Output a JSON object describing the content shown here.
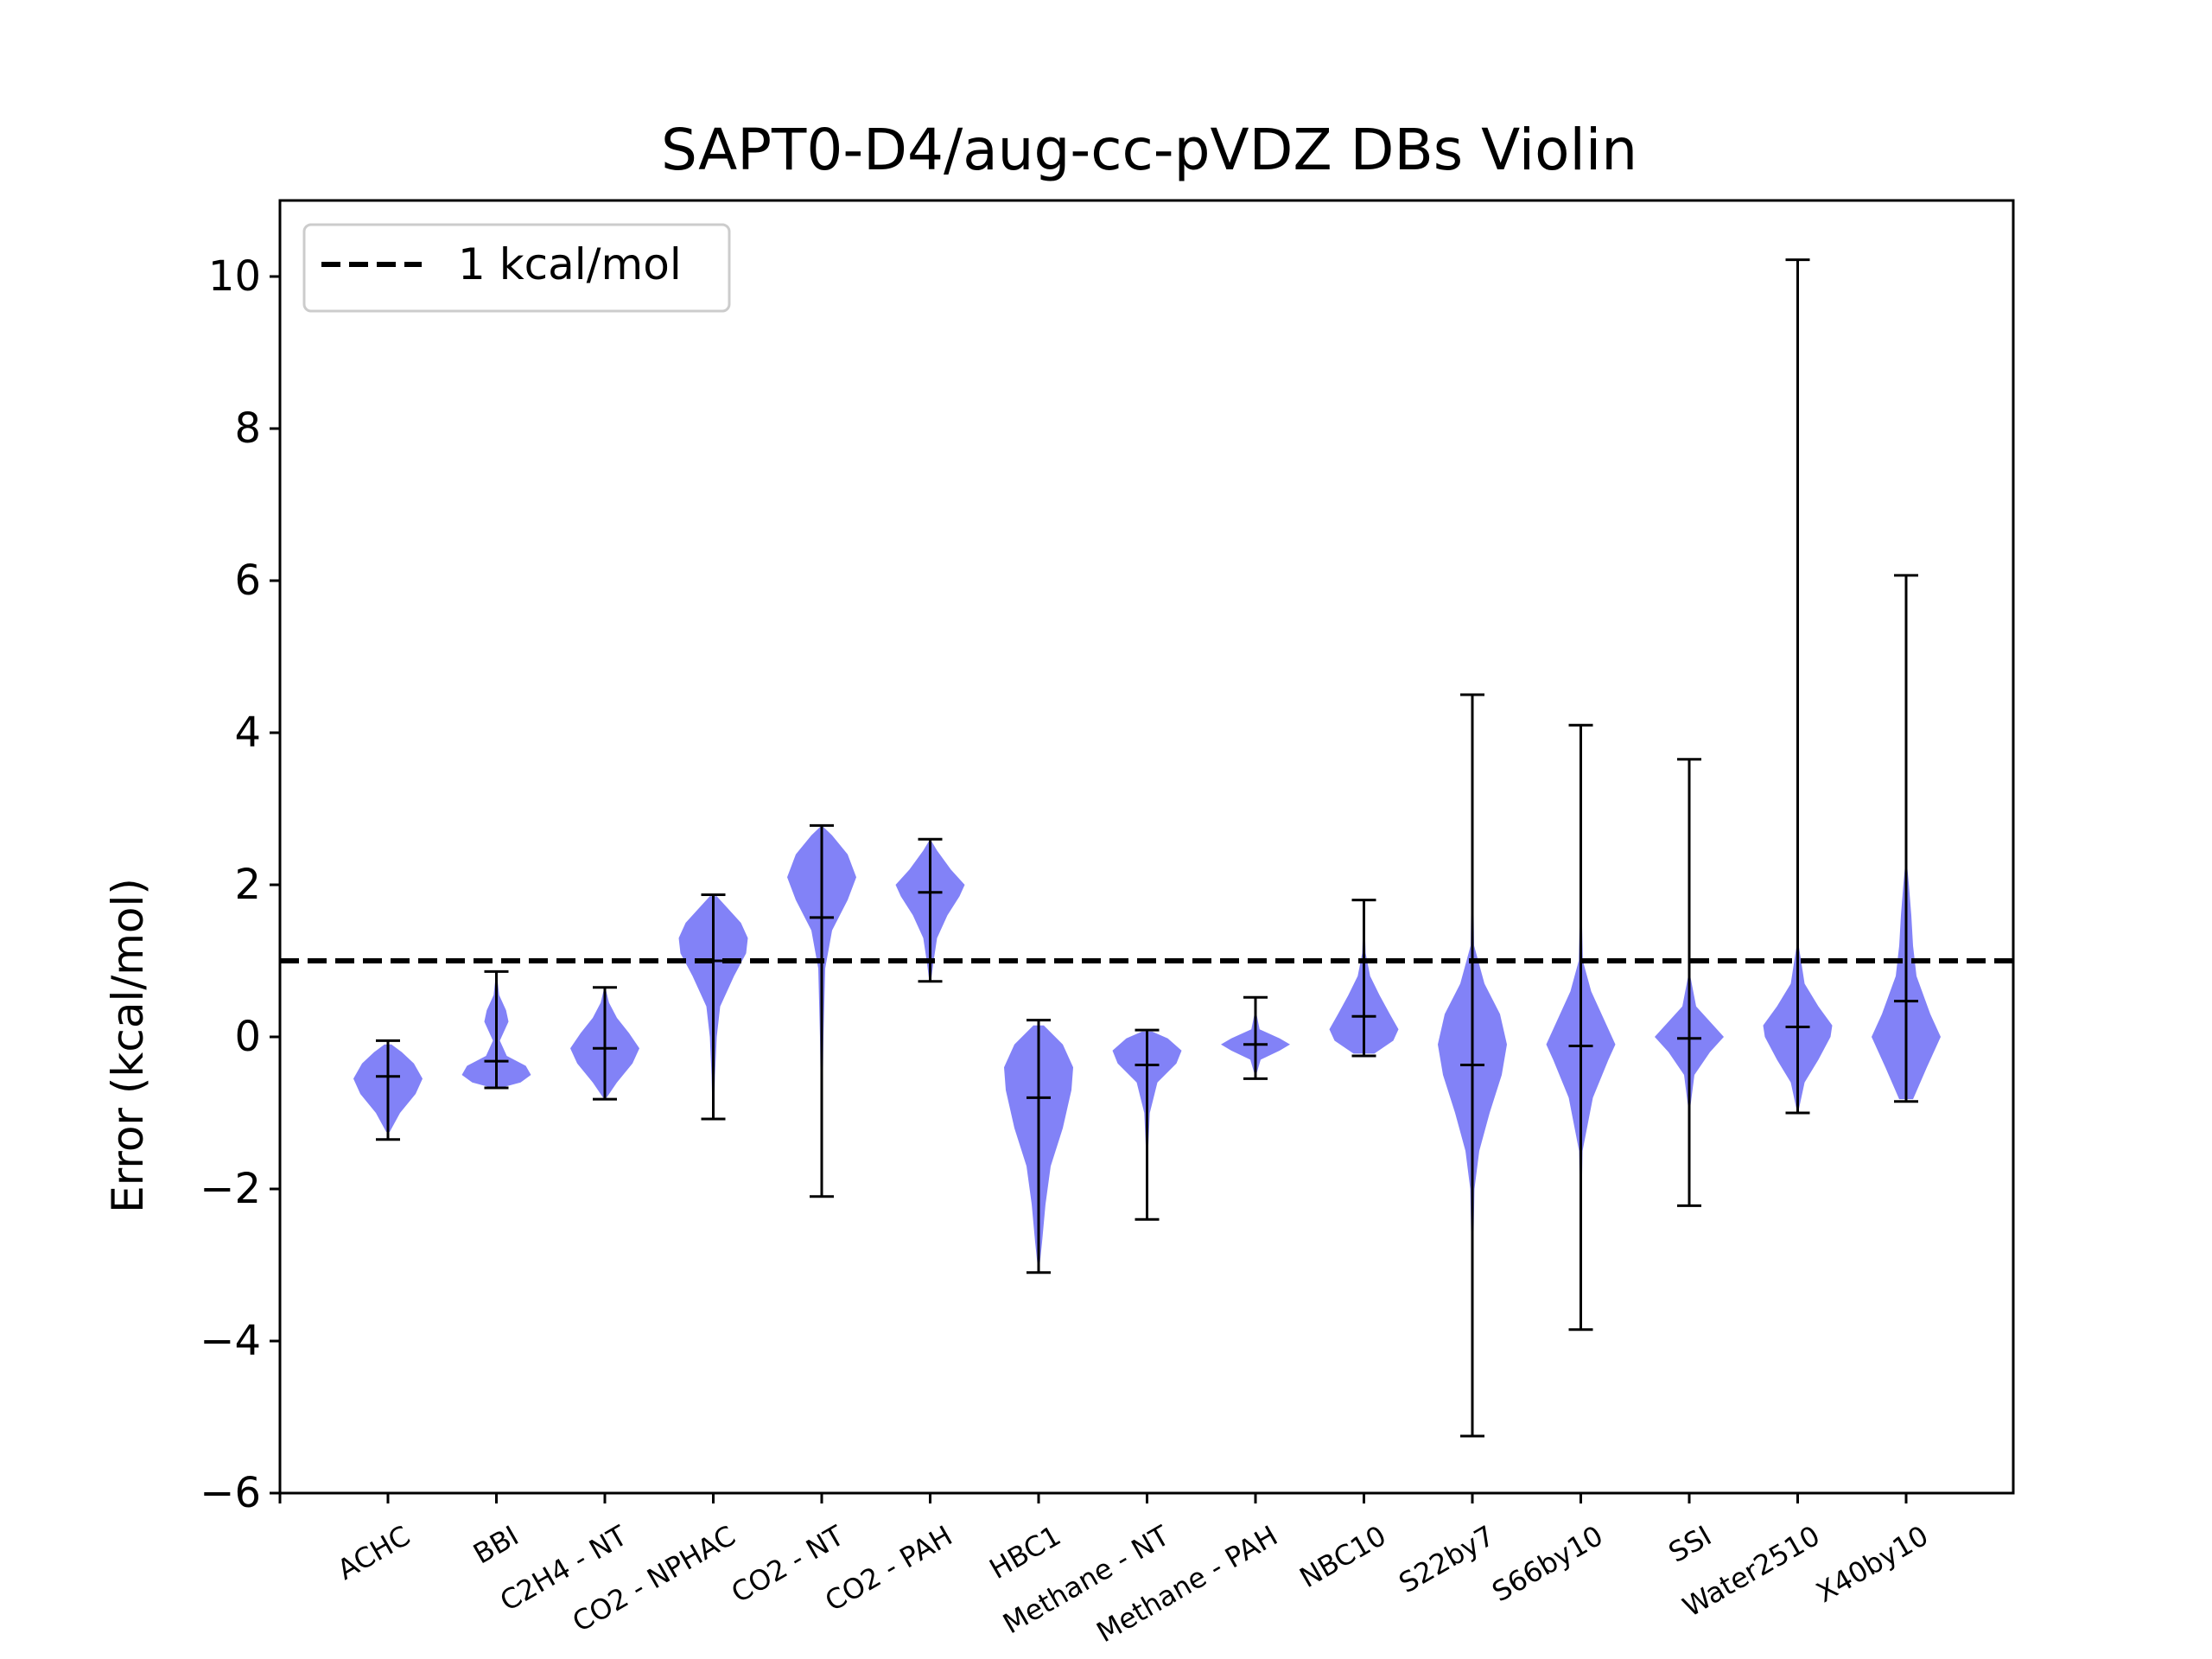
{
  "chart_data": {
    "type": "violin",
    "title": "SAPT0-D4/aug-cc-pVDZ DBs Violin",
    "xlabel": "",
    "ylabel": "Error (kcal/mol)",
    "ylim": [
      -6,
      11
    ],
    "yticks": [
      -6,
      -4,
      -2,
      0,
      2,
      4,
      6,
      8,
      10
    ],
    "ytick_labels": [
      "−6",
      "−4",
      "−2",
      "0",
      "2",
      "4",
      "6",
      "8",
      "10"
    ],
    "grid": false,
    "legend": {
      "location": "top-left",
      "entries": [
        {
          "label": "1 kcal/mol",
          "style": "dashed black line"
        }
      ]
    },
    "reference_line": {
      "y": 1.0,
      "style": "dashed",
      "color": "#000000"
    },
    "violin_color": "#7b7bf7",
    "categories": [
      "ACHC",
      "BBI",
      "C2H4 - NT",
      "CO2 - NPHAC",
      "CO2 - NT",
      "CO2 - PAH",
      "HBC1",
      "Methane - NT",
      "Methane - PAH",
      "NBC10",
      "S22by7",
      "S66by10",
      "SSI",
      "Water2510",
      "X40by10"
    ],
    "series": [
      {
        "min": -1.35,
        "max": -0.05,
        "median": -0.52,
        "density": [
          [
            -1.25,
            0.05
          ],
          [
            -1.0,
            0.35
          ],
          [
            -0.75,
            0.8
          ],
          [
            -0.55,
            1.0
          ],
          [
            -0.35,
            0.75
          ],
          [
            -0.2,
            0.4
          ],
          [
            -0.1,
            0.1
          ]
        ]
      },
      {
        "min": -0.67,
        "max": 0.86,
        "median": -0.32,
        "density": [
          [
            -0.66,
            0.2
          ],
          [
            -0.6,
            0.7
          ],
          [
            -0.5,
            1.0
          ],
          [
            -0.38,
            0.85
          ],
          [
            -0.25,
            0.3
          ],
          [
            -0.05,
            0.1
          ],
          [
            0.2,
            0.35
          ],
          [
            0.35,
            0.28
          ],
          [
            0.55,
            0.08
          ],
          [
            0.8,
            0.02
          ]
        ]
      },
      {
        "min": -0.82,
        "max": 0.65,
        "median": -0.15,
        "density": [
          [
            -0.8,
            0.05
          ],
          [
            -0.6,
            0.35
          ],
          [
            -0.35,
            0.8
          ],
          [
            -0.15,
            1.0
          ],
          [
            0.05,
            0.7
          ],
          [
            0.25,
            0.35
          ],
          [
            0.45,
            0.12
          ],
          [
            0.62,
            0.03
          ]
        ]
      },
      {
        "min": -1.08,
        "max": 1.87,
        "median": 1.0,
        "density": [
          [
            -1.05,
            0.02
          ],
          [
            -0.5,
            0.05
          ],
          [
            0.0,
            0.1
          ],
          [
            0.4,
            0.2
          ],
          [
            0.8,
            0.6
          ],
          [
            1.1,
            0.95
          ],
          [
            1.3,
            1.0
          ],
          [
            1.5,
            0.8
          ],
          [
            1.7,
            0.4
          ],
          [
            1.85,
            0.1
          ]
        ]
      },
      {
        "min": -2.1,
        "max": 2.78,
        "median": 1.57,
        "density": [
          [
            -2.05,
            0.01
          ],
          [
            -1.0,
            0.02
          ],
          [
            0.0,
            0.05
          ],
          [
            0.9,
            0.1
          ],
          [
            1.4,
            0.3
          ],
          [
            1.8,
            0.75
          ],
          [
            2.1,
            1.0
          ],
          [
            2.4,
            0.75
          ],
          [
            2.65,
            0.3
          ],
          [
            2.76,
            0.05
          ]
        ]
      },
      {
        "min": 0.73,
        "max": 2.6,
        "median": 1.9,
        "density": [
          [
            0.75,
            0.03
          ],
          [
            1.0,
            0.1
          ],
          [
            1.3,
            0.2
          ],
          [
            1.6,
            0.5
          ],
          [
            1.85,
            0.85
          ],
          [
            2.0,
            1.0
          ],
          [
            2.2,
            0.6
          ],
          [
            2.45,
            0.2
          ],
          [
            2.58,
            0.03
          ]
        ]
      },
      {
        "min": -3.1,
        "max": 0.22,
        "median": -0.8,
        "density": [
          [
            -3.05,
            0.02
          ],
          [
            -2.7,
            0.1
          ],
          [
            -2.2,
            0.2
          ],
          [
            -1.7,
            0.35
          ],
          [
            -1.2,
            0.7
          ],
          [
            -0.7,
            0.95
          ],
          [
            -0.4,
            1.0
          ],
          [
            -0.1,
            0.7
          ],
          [
            0.15,
            0.15
          ]
        ]
      },
      {
        "min": -2.4,
        "max": 0.09,
        "median": -0.37,
        "density": [
          [
            -2.35,
            0.01
          ],
          [
            -1.5,
            0.03
          ],
          [
            -1.0,
            0.08
          ],
          [
            -0.6,
            0.3
          ],
          [
            -0.35,
            0.85
          ],
          [
            -0.18,
            1.0
          ],
          [
            -0.02,
            0.6
          ],
          [
            0.07,
            0.15
          ]
        ]
      },
      {
        "min": -0.55,
        "max": 0.52,
        "median": -0.1,
        "density": [
          [
            -0.5,
            0.02
          ],
          [
            -0.3,
            0.15
          ],
          [
            -0.18,
            0.7
          ],
          [
            -0.1,
            1.0
          ],
          [
            -0.02,
            0.7
          ],
          [
            0.1,
            0.12
          ],
          [
            0.3,
            0.03
          ],
          [
            0.5,
            0.01
          ]
        ]
      },
      {
        "min": -0.25,
        "max": 1.8,
        "median": 0.27,
        "density": [
          [
            -0.22,
            0.3
          ],
          [
            -0.05,
            0.85
          ],
          [
            0.1,
            1.0
          ],
          [
            0.3,
            0.75
          ],
          [
            0.55,
            0.45
          ],
          [
            0.8,
            0.18
          ],
          [
            1.1,
            0.05
          ],
          [
            1.5,
            0.02
          ],
          [
            1.78,
            0.01
          ]
        ]
      },
      {
        "min": -5.25,
        "max": 4.5,
        "median": -0.37,
        "density": [
          [
            -5.2,
            0.005
          ],
          [
            -4.0,
            0.01
          ],
          [
            -3.0,
            0.02
          ],
          [
            -2.0,
            0.06
          ],
          [
            -1.5,
            0.2
          ],
          [
            -1.0,
            0.5
          ],
          [
            -0.5,
            0.85
          ],
          [
            -0.1,
            1.0
          ],
          [
            0.3,
            0.8
          ],
          [
            0.7,
            0.35
          ],
          [
            1.2,
            0.05
          ],
          [
            2.5,
            0.01
          ],
          [
            4.45,
            0.005
          ]
        ]
      },
      {
        "min": -3.85,
        "max": 4.1,
        "median": -0.12,
        "density": [
          [
            -3.8,
            0.005
          ],
          [
            -2.5,
            0.01
          ],
          [
            -1.5,
            0.05
          ],
          [
            -0.8,
            0.35
          ],
          [
            -0.3,
            0.8
          ],
          [
            -0.1,
            1.0
          ],
          [
            0.2,
            0.7
          ],
          [
            0.6,
            0.3
          ],
          [
            1.0,
            0.06
          ],
          [
            2.0,
            0.01
          ],
          [
            4.05,
            0.005
          ]
        ]
      },
      {
        "min": -2.22,
        "max": 3.65,
        "median": -0.02,
        "density": [
          [
            -2.2,
            0.005
          ],
          [
            -1.0,
            0.01
          ],
          [
            -0.5,
            0.15
          ],
          [
            -0.2,
            0.6
          ],
          [
            0.0,
            1.0
          ],
          [
            0.15,
            0.7
          ],
          [
            0.4,
            0.2
          ],
          [
            0.8,
            0.03
          ],
          [
            2.0,
            0.005
          ],
          [
            3.6,
            0.003
          ]
        ]
      },
      {
        "min": -1.0,
        "max": 10.22,
        "median": 0.13,
        "density": [
          [
            -0.98,
            0.02
          ],
          [
            -0.6,
            0.2
          ],
          [
            -0.3,
            0.6
          ],
          [
            0.0,
            0.95
          ],
          [
            0.15,
            1.0
          ],
          [
            0.4,
            0.6
          ],
          [
            0.7,
            0.2
          ],
          [
            1.2,
            0.03
          ],
          [
            3.0,
            0.005
          ],
          [
            10.2,
            0.002
          ]
        ]
      },
      {
        "min": -0.85,
        "max": 6.07,
        "median": 0.47,
        "density": [
          [
            -0.82,
            0.2
          ],
          [
            -0.4,
            0.6
          ],
          [
            0.0,
            1.0
          ],
          [
            0.3,
            0.7
          ],
          [
            0.8,
            0.3
          ],
          [
            1.2,
            0.2
          ],
          [
            1.6,
            0.15
          ],
          [
            2.0,
            0.08
          ],
          [
            2.3,
            0.02
          ],
          [
            3.5,
            0.005
          ],
          [
            6.05,
            0.002
          ]
        ]
      }
    ]
  }
}
